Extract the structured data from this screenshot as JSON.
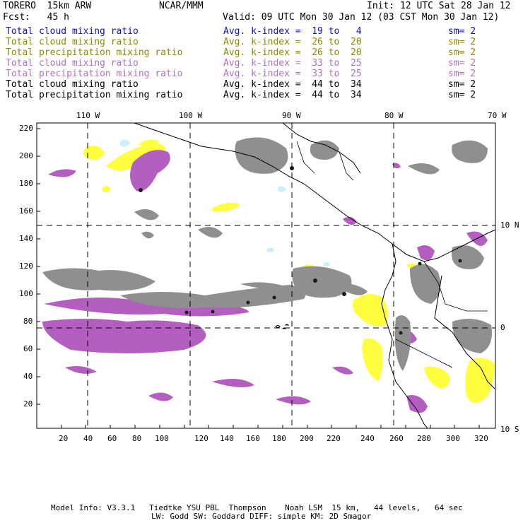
{
  "header": {
    "model": "TORERO  15km ARW",
    "org": "NCAR/MMM",
    "init": "Init: 12 UTC Sat 28 Jan 12",
    "fcst": "Fcst:   45 h",
    "valid": "Valid: 09 UTC Mon 30 Jan 12 (03 CST Mon 30 Jan 12)"
  },
  "colors": {
    "blue": "#1010c0",
    "olive": "#8a8a00",
    "purple": "#b070c0",
    "black": "#000000",
    "precip_purple": "#b35fbf",
    "cloud_gray": "#8f8f8f",
    "yellow": "#ffff40",
    "lightblue": "#c8f0ff"
  },
  "legend": [
    {
      "field": "Total cloud mixing ratio",
      "index": "Avg. k-index =  19 to   4",
      "sm": "sm= 2",
      "color": "blue"
    },
    {
      "field": "Total cloud mixing ratio",
      "index": "Avg. k-index =  26 to  20",
      "sm": "sm= 2",
      "color": "olive"
    },
    {
      "field": "Total precipitation mixing ratio",
      "index": "Avg. k-index =  26 to  20",
      "sm": "sm= 2",
      "color": "olive"
    },
    {
      "field": "Total cloud mixing ratio",
      "index": "Avg. k-index =  33 to  25",
      "sm": "sm= 2",
      "color": "purple"
    },
    {
      "field": "Total precipitation mixing ratio",
      "index": "Avg. k-index =  33 to  25",
      "sm": "sm= 2",
      "color": "purple"
    },
    {
      "field": "Total cloud mixing ratio",
      "index": "Avg. k-index =  44 to  34",
      "sm": "sm= 2",
      "color": "black"
    },
    {
      "field": "Total precipitation mixing ratio",
      "index": "Avg. k-index =  44 to  34",
      "sm": "sm= 2",
      "color": "black"
    }
  ],
  "map": {
    "lon_labels": [
      "110 W",
      "100 W",
      "90 W",
      "80 W",
      "70 W"
    ],
    "lat_labels": [
      "10 N",
      "0",
      "10 S"
    ],
    "x_ticks": [
      "20",
      "40",
      "60",
      "80",
      "100",
      "120",
      "140",
      "160",
      "180",
      "200",
      "220",
      "240",
      "260",
      "280",
      "300",
      "320"
    ],
    "y_ticks": [
      "220",
      "200",
      "180",
      "160",
      "140",
      "120",
      "100",
      "80",
      "60",
      "40",
      "20"
    ]
  },
  "footer": {
    "line1": "Model Info: V3.3.1   Tiedtke YSU PBL  Thompson    Noah LSM  15 km,   44 levels,   64 sec",
    "line2": "LW: Godd SW: Goddard DIFF: simple KM: 2D Smagor"
  }
}
